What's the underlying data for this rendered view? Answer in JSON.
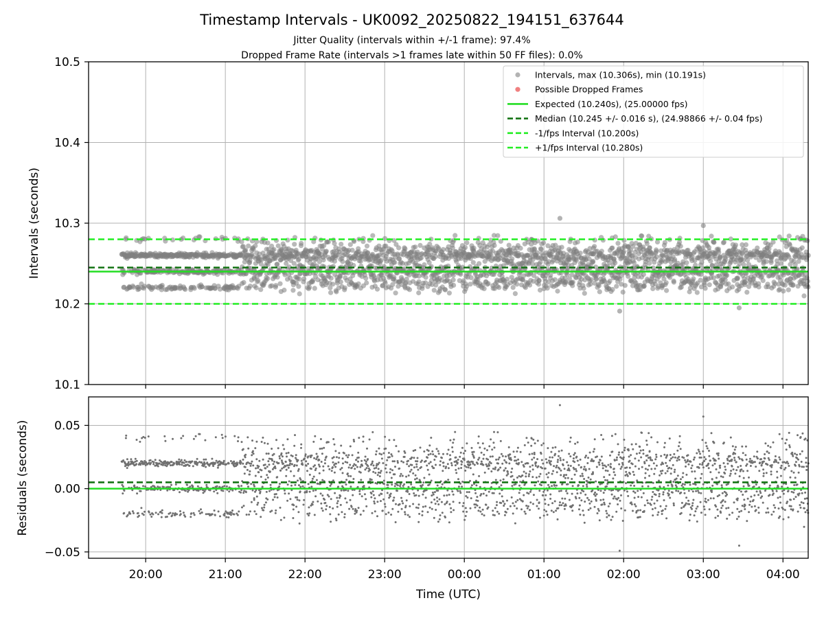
{
  "chart_data": [
    {
      "type": "scatter",
      "title": "Timestamp Intervals - UK0092_20250822_194151_637644",
      "subtitle1": "Jitter Quality (intervals within +/-1 frame): 97.4%",
      "subtitle2": "Dropped Frame Rate (intervals >1 frames late within 50 FF files): 0.0%",
      "ylabel": "Intervals (seconds)",
      "xlim": [
        -0.7167,
        8.3167
      ],
      "ylim": [
        10.1,
        10.5
      ],
      "yticks": [
        10.1,
        10.2,
        10.3,
        10.4,
        10.5
      ],
      "ytick_labels": [
        "10.1",
        "10.2",
        "10.3",
        "10.4",
        "10.5"
      ],
      "grid": true,
      "legend_position": "upper-right",
      "series": [
        {
          "name": "Intervals, max (10.306s), min (10.191s)",
          "kind": "points",
          "color": "#808080"
        },
        {
          "name": "Possible Dropped Frames",
          "kind": "points",
          "color": "#f08080",
          "values": []
        },
        {
          "name": "Expected (10.240s), (25.00000 fps)",
          "kind": "hline",
          "y": 10.24,
          "color": "#22dd22",
          "style": "solid"
        },
        {
          "name": "Median (10.245 +/- 0.016 s), (24.98866 +/- 0.04 fps)",
          "kind": "hline",
          "y": 10.245,
          "color": "#137313",
          "style": "dashed"
        },
        {
          "name": "-1/fps Interval (10.200s)",
          "kind": "hline",
          "y": 10.2,
          "color": "#22ee22",
          "style": "dashed"
        },
        {
          "name": "+1/fps Interval (10.280s)",
          "kind": "hline",
          "y": 10.28,
          "color": "#22ee22",
          "style": "dashed"
        }
      ],
      "points_note": "~2800 interval samples from 19:41 to 04:19 UTC, clustered around 10.22, 10.24 and 10.26 s",
      "max_interval": 10.306,
      "min_interval": 10.191
    },
    {
      "type": "scatter",
      "xlabel": "Time (UTC)",
      "ylabel": "Residuals (seconds)",
      "xlim": [
        -0.7167,
        8.3167
      ],
      "ylim": [
        -0.055,
        0.0725
      ],
      "yticks": [
        -0.05,
        0.0,
        0.05
      ],
      "ytick_labels": [
        "−0.05",
        "0.00",
        "0.05"
      ],
      "xticks": [
        0,
        1,
        2,
        3,
        4,
        5,
        6,
        7,
        8
      ],
      "xtick_labels": [
        "20:00",
        "21:00",
        "22:00",
        "23:00",
        "00:00",
        "01:00",
        "02:00",
        "03:00",
        "04:00"
      ],
      "grid": true,
      "series": [
        {
          "name": "",
          "kind": "points",
          "color": "#808080"
        },
        {
          "name": "",
          "kind": "hline",
          "y": 0.0,
          "color": "#22dd22",
          "style": "solid"
        },
        {
          "name": "",
          "kind": "hline",
          "y": 0.005,
          "color": "#137313",
          "style": "dashed"
        }
      ]
    }
  ]
}
